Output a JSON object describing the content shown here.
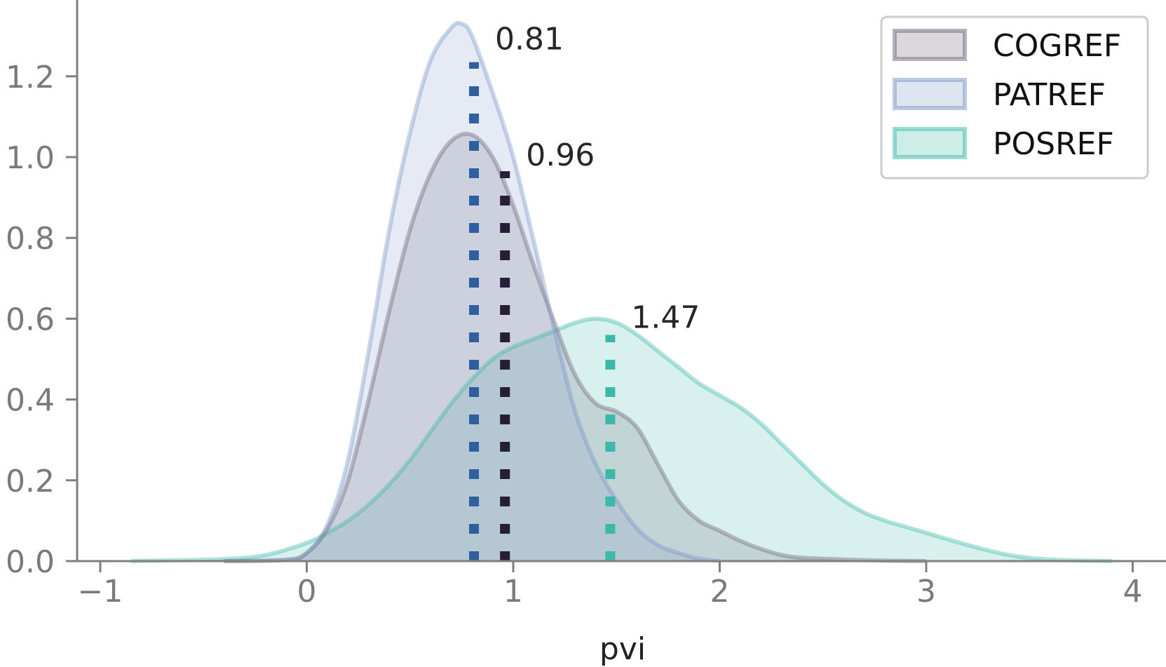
{
  "chart_data": {
    "type": "density",
    "title": "",
    "xlabel": "pvi",
    "ylabel": "",
    "xlim": [
      -1.1,
      4.2
    ],
    "ylim": [
      0,
      1.36
    ],
    "xticks": [
      -1,
      0,
      1,
      2,
      3,
      4
    ],
    "xtick_labels": [
      "−1",
      "0",
      "1",
      "2",
      "3",
      "4"
    ],
    "yticks": [
      0,
      0.2,
      0.4,
      0.6,
      0.8,
      1.0,
      1.2
    ],
    "ytick_labels": [
      "0.0",
      "0.2",
      "0.4",
      "0.6",
      "0.8",
      "1.0",
      "1.2"
    ],
    "legend_position": "top-right",
    "series": [
      {
        "name": "POSREF",
        "color": "#3cb8a8",
        "median": 1.47,
        "median_label": "1.47",
        "x": [
          -0.85,
          -0.4,
          -0.2,
          0,
          0.1,
          0.2,
          0.3,
          0.4,
          0.5,
          0.6,
          0.7,
          0.8,
          0.9,
          1.0,
          1.1,
          1.2,
          1.3,
          1.4,
          1.5,
          1.6,
          1.7,
          1.8,
          1.9,
          2.0,
          2.1,
          2.2,
          2.3,
          2.4,
          2.5,
          2.6,
          2.7,
          2.8,
          2.9,
          3.0,
          3.2,
          3.4,
          3.6,
          3.9
        ],
        "y": [
          0,
          0.005,
          0.015,
          0.045,
          0.07,
          0.1,
          0.14,
          0.19,
          0.25,
          0.32,
          0.39,
          0.45,
          0.5,
          0.53,
          0.55,
          0.57,
          0.59,
          0.6,
          0.59,
          0.56,
          0.52,
          0.48,
          0.44,
          0.41,
          0.38,
          0.34,
          0.29,
          0.24,
          0.19,
          0.15,
          0.12,
          0.1,
          0.085,
          0.07,
          0.04,
          0.015,
          0.004,
          0
        ]
      },
      {
        "name": "COGREF",
        "color": "#6e6479",
        "median": 0.96,
        "median_label": "0.96",
        "x": [
          -0.4,
          -0.1,
          0,
          0.1,
          0.2,
          0.3,
          0.4,
          0.5,
          0.6,
          0.7,
          0.8,
          0.9,
          1.0,
          1.1,
          1.2,
          1.3,
          1.4,
          1.5,
          1.6,
          1.7,
          1.8,
          1.9,
          2.0,
          2.1,
          2.2,
          2.3,
          2.4,
          2.6,
          2.8,
          3.0
        ],
        "y": [
          0,
          0.003,
          0.02,
          0.08,
          0.2,
          0.4,
          0.62,
          0.82,
          0.96,
          1.04,
          1.055,
          1.0,
          0.88,
          0.73,
          0.59,
          0.46,
          0.39,
          0.37,
          0.33,
          0.24,
          0.15,
          0.1,
          0.075,
          0.05,
          0.03,
          0.015,
          0.008,
          0.004,
          0.001,
          0
        ]
      },
      {
        "name": "PATREF",
        "color": "#7b97c6",
        "median": 0.81,
        "median_label": "0.81",
        "x": [
          -0.4,
          -0.1,
          0,
          0.1,
          0.2,
          0.3,
          0.4,
          0.5,
          0.6,
          0.7,
          0.75,
          0.8,
          0.9,
          1.0,
          1.1,
          1.2,
          1.3,
          1.4,
          1.5,
          1.6,
          1.7,
          1.8,
          1.9,
          2.0
        ],
        "y": [
          0,
          0.003,
          0.02,
          0.09,
          0.25,
          0.52,
          0.82,
          1.06,
          1.24,
          1.32,
          1.33,
          1.3,
          1.16,
          1.0,
          0.79,
          0.57,
          0.37,
          0.24,
          0.15,
          0.08,
          0.04,
          0.02,
          0.006,
          0
        ]
      }
    ]
  },
  "legend": {
    "items": [
      {
        "label": "COGREF",
        "color": "#6e6479"
      },
      {
        "label": "PATREF",
        "color": "#7b97c6"
      },
      {
        "label": "POSREF",
        "color": "#3cb8a8"
      }
    ]
  },
  "median_line_colors": {
    "PATREF": "#2f5f9e",
    "COGREF": "#261d36",
    "POSREF": "#3cb8a8"
  }
}
